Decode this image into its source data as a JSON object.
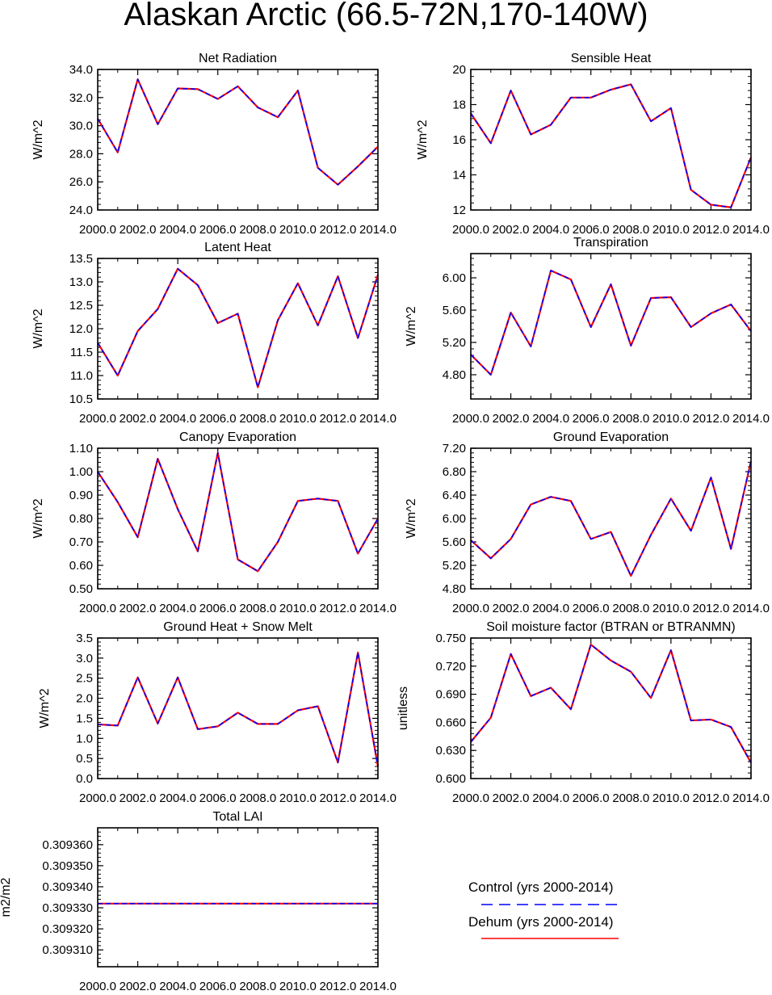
{
  "title": "Alaskan Arctic (66.5-72N,170-140W)",
  "colors": {
    "control": "#0000ff",
    "dehum": "#ff0000",
    "frame": "#000000"
  },
  "legend": {
    "items": [
      {
        "label": "Control (yrs 2000-2014)",
        "style": "dashed",
        "color": "#0000ff"
      },
      {
        "label": "Dehum (yrs 2000-2014)",
        "style": "solid",
        "color": "#ff0000"
      }
    ]
  },
  "chart_data": [
    {
      "type": "line",
      "title": "Net Radiation",
      "ylabel": "W/m^2",
      "x": [
        2000,
        2001,
        2002,
        2003,
        2004,
        2005,
        2006,
        2007,
        2008,
        2009,
        2010,
        2011,
        2012,
        2013,
        2014
      ],
      "xlim": [
        2000,
        2014
      ],
      "xticks": [
        "2000.0",
        "2002.0",
        "2004.0",
        "2006.0",
        "2008.0",
        "2010.0",
        "2012.0",
        "2014.0"
      ],
      "ylim": [
        24,
        34
      ],
      "yticks": [
        "24.0",
        "26.0",
        "28.0",
        "30.0",
        "32.0",
        "34.0"
      ],
      "series": [
        {
          "name": "Control (yrs 2000-2014)",
          "values": [
            30.5,
            28.1,
            33.3,
            30.1,
            32.65,
            32.6,
            31.9,
            32.8,
            31.3,
            30.6,
            32.5,
            27.0,
            25.8,
            27.1,
            28.5
          ]
        },
        {
          "name": "Dehum (yrs 2000-2014)",
          "values": [
            30.5,
            28.1,
            33.3,
            30.1,
            32.65,
            32.6,
            31.9,
            32.8,
            31.3,
            30.6,
            32.5,
            27.0,
            25.8,
            27.1,
            28.5
          ]
        }
      ]
    },
    {
      "type": "line",
      "title": "Sensible Heat",
      "ylabel": "W/m^2",
      "x": [
        2000,
        2001,
        2002,
        2003,
        2004,
        2005,
        2006,
        2007,
        2008,
        2009,
        2010,
        2011,
        2012,
        2013,
        2014
      ],
      "xlim": [
        2000,
        2014
      ],
      "xticks": [
        "2000.0",
        "2002.0",
        "2004.0",
        "2006.0",
        "2008.0",
        "2010.0",
        "2012.0",
        "2014.0"
      ],
      "ylim": [
        12,
        20
      ],
      "yticks": [
        "12",
        "14",
        "16",
        "18",
        "20"
      ],
      "series": [
        {
          "name": "Control (yrs 2000-2014)",
          "values": [
            17.5,
            15.8,
            18.8,
            16.3,
            16.85,
            18.4,
            18.4,
            18.85,
            19.15,
            17.05,
            17.8,
            13.15,
            12.3,
            12.15,
            15.0
          ]
        },
        {
          "name": "Dehum (yrs 2000-2014)",
          "values": [
            17.5,
            15.8,
            18.8,
            16.3,
            16.85,
            18.4,
            18.4,
            18.85,
            19.15,
            17.05,
            17.8,
            13.15,
            12.3,
            12.15,
            15.0
          ]
        }
      ]
    },
    {
      "type": "line",
      "title": "Latent Heat",
      "ylabel": "W/m^2",
      "x": [
        2000,
        2001,
        2002,
        2003,
        2004,
        2005,
        2006,
        2007,
        2008,
        2009,
        2010,
        2011,
        2012,
        2013,
        2014
      ],
      "xlim": [
        2000,
        2014
      ],
      "xticks": [
        "2000.0",
        "2002.0",
        "2004.0",
        "2006.0",
        "2008.0",
        "2010.0",
        "2012.0",
        "2014.0"
      ],
      "ylim": [
        10.5,
        13.5
      ],
      "yticks": [
        "10.5",
        "11.0",
        "11.5",
        "12.0",
        "12.5",
        "13.0",
        "13.5"
      ],
      "series": [
        {
          "name": "Control (yrs 2000-2014)",
          "values": [
            11.7,
            11.0,
            11.95,
            12.42,
            13.28,
            12.93,
            12.12,
            12.32,
            10.75,
            12.18,
            12.97,
            12.07,
            13.12,
            11.8,
            13.15
          ]
        },
        {
          "name": "Dehum (yrs 2000-2014)",
          "values": [
            11.7,
            11.0,
            11.95,
            12.42,
            13.28,
            12.93,
            12.12,
            12.32,
            10.75,
            12.18,
            12.97,
            12.07,
            13.12,
            11.8,
            13.15
          ]
        }
      ]
    },
    {
      "type": "line",
      "title": "Transpiration",
      "ylabel": "W/m^2",
      "x": [
        2000,
        2001,
        2002,
        2003,
        2004,
        2005,
        2006,
        2007,
        2008,
        2009,
        2010,
        2011,
        2012,
        2013,
        2014
      ],
      "xlim": [
        2000,
        2014
      ],
      "xticks": [
        "2000.0",
        "2002.0",
        "2004.0",
        "2006.0",
        "2008.0",
        "2010.0",
        "2012.0",
        "2014.0"
      ],
      "ylim": [
        4.5,
        6.3
      ],
      "yticks": [
        "4.80",
        "5.20",
        "5.60",
        "6.00"
      ],
      "series": [
        {
          "name": "Control (yrs 2000-2014)",
          "values": [
            5.05,
            4.8,
            5.57,
            5.15,
            6.09,
            5.98,
            5.39,
            5.92,
            5.16,
            5.75,
            5.76,
            5.39,
            5.56,
            5.67,
            5.34
          ]
        },
        {
          "name": "Dehum (yrs 2000-2014)",
          "values": [
            5.05,
            4.8,
            5.57,
            5.15,
            6.09,
            5.98,
            5.39,
            5.92,
            5.16,
            5.75,
            5.76,
            5.39,
            5.56,
            5.67,
            5.34
          ]
        }
      ]
    },
    {
      "type": "line",
      "title": "Canopy Evaporation",
      "ylabel": "W/m^2",
      "x": [
        2000,
        2001,
        2002,
        2003,
        2004,
        2005,
        2006,
        2007,
        2008,
        2009,
        2010,
        2011,
        2012,
        2013,
        2014
      ],
      "xlim": [
        2000,
        2014
      ],
      "xticks": [
        "2000.0",
        "2002.0",
        "2004.0",
        "2006.0",
        "2008.0",
        "2010.0",
        "2012.0",
        "2014.0"
      ],
      "ylim": [
        0.5,
        1.1
      ],
      "yticks": [
        "0.50",
        "0.60",
        "0.70",
        "0.80",
        "0.90",
        "1.00",
        "1.10"
      ],
      "series": [
        {
          "name": "Control (yrs 2000-2014)",
          "values": [
            1.0,
            0.87,
            0.72,
            1.055,
            0.84,
            0.66,
            1.08,
            0.625,
            0.575,
            0.7,
            0.875,
            0.885,
            0.875,
            0.65,
            0.8
          ]
        },
        {
          "name": "Dehum (yrs 2000-2014)",
          "values": [
            1.0,
            0.87,
            0.72,
            1.055,
            0.84,
            0.66,
            1.08,
            0.625,
            0.575,
            0.7,
            0.875,
            0.885,
            0.875,
            0.65,
            0.8
          ]
        }
      ]
    },
    {
      "type": "line",
      "title": "Ground Evaporation",
      "ylabel": "W/m^2",
      "x": [
        2000,
        2001,
        2002,
        2003,
        2004,
        2005,
        2006,
        2007,
        2008,
        2009,
        2010,
        2011,
        2012,
        2013,
        2014
      ],
      "xlim": [
        2000,
        2014
      ],
      "xticks": [
        "2000.0",
        "2002.0",
        "2004.0",
        "2006.0",
        "2008.0",
        "2010.0",
        "2012.0",
        "2014.0"
      ],
      "ylim": [
        4.8,
        7.2
      ],
      "yticks": [
        "4.80",
        "5.20",
        "5.60",
        "6.00",
        "6.40",
        "6.80",
        "7.20"
      ],
      "series": [
        {
          "name": "Control (yrs 2000-2014)",
          "values": [
            5.63,
            5.32,
            5.65,
            6.24,
            6.37,
            6.3,
            5.65,
            5.77,
            5.02,
            5.72,
            6.34,
            5.79,
            6.7,
            5.48,
            6.98
          ]
        },
        {
          "name": "Dehum (yrs 2000-2014)",
          "values": [
            5.63,
            5.32,
            5.65,
            6.24,
            6.37,
            6.3,
            5.65,
            5.77,
            5.02,
            5.72,
            6.34,
            5.79,
            6.7,
            5.48,
            6.98
          ]
        }
      ]
    },
    {
      "type": "line",
      "title": "Ground Heat + Snow Melt",
      "ylabel": "W/m^2",
      "x": [
        2000,
        2001,
        2002,
        2003,
        2004,
        2005,
        2006,
        2007,
        2008,
        2009,
        2010,
        2011,
        2012,
        2013,
        2014
      ],
      "xlim": [
        2000,
        2014
      ],
      "xticks": [
        "2000.0",
        "2002.0",
        "2004.0",
        "2006.0",
        "2008.0",
        "2010.0",
        "2012.0",
        "2014.0"
      ],
      "ylim": [
        0,
        3.5
      ],
      "yticks": [
        "0.0",
        "0.5",
        "1.0",
        "1.5",
        "2.0",
        "2.5",
        "3.0",
        "3.5"
      ],
      "series": [
        {
          "name": "Control (yrs 2000-2014)",
          "values": [
            1.35,
            1.32,
            2.52,
            1.37,
            2.52,
            1.23,
            1.3,
            1.64,
            1.36,
            1.36,
            1.7,
            1.8,
            0.4,
            3.14,
            0.3
          ]
        },
        {
          "name": "Dehum (yrs 2000-2014)",
          "values": [
            1.35,
            1.32,
            2.52,
            1.37,
            2.52,
            1.23,
            1.3,
            1.64,
            1.36,
            1.36,
            1.7,
            1.8,
            0.4,
            3.14,
            0.3
          ]
        }
      ]
    },
    {
      "type": "line",
      "title": "Soil moisture factor (BTRAN or BTRANMN)",
      "ylabel": "unitless",
      "x": [
        2000,
        2001,
        2002,
        2003,
        2004,
        2005,
        2006,
        2007,
        2008,
        2009,
        2010,
        2011,
        2012,
        2013,
        2014
      ],
      "xlim": [
        2000,
        2014
      ],
      "xticks": [
        "2000.0",
        "2002.0",
        "2004.0",
        "2006.0",
        "2008.0",
        "2010.0",
        "2012.0",
        "2014.0"
      ],
      "ylim": [
        0.6,
        0.75
      ],
      "yticks": [
        "0.600",
        "0.630",
        "0.660",
        "0.690",
        "0.720",
        "0.750"
      ],
      "series": [
        {
          "name": "Control (yrs 2000-2014)",
          "values": [
            0.639,
            0.665,
            0.733,
            0.688,
            0.697,
            0.674,
            0.743,
            0.726,
            0.714,
            0.686,
            0.737,
            0.662,
            0.663,
            0.655,
            0.617
          ]
        },
        {
          "name": "Dehum (yrs 2000-2014)",
          "values": [
            0.639,
            0.665,
            0.733,
            0.688,
            0.697,
            0.674,
            0.743,
            0.726,
            0.714,
            0.686,
            0.737,
            0.662,
            0.663,
            0.655,
            0.617
          ]
        }
      ]
    },
    {
      "type": "line",
      "title": "Total LAI",
      "ylabel": "m2/m2",
      "x": [
        2000,
        2001,
        2002,
        2003,
        2004,
        2005,
        2006,
        2007,
        2008,
        2009,
        2010,
        2011,
        2012,
        2013,
        2014
      ],
      "xlim": [
        2000,
        2014
      ],
      "xticks": [
        "2000.0",
        "2002.0",
        "2004.0",
        "2006.0",
        "2008.0",
        "2010.0",
        "2012.0",
        "2014.0"
      ],
      "ylim": [
        0.309302,
        0.309368
      ],
      "yticks": [
        "0.309310",
        "0.309320",
        "0.309330",
        "0.309340",
        "0.309350",
        "0.309360"
      ],
      "series": [
        {
          "name": "Control (yrs 2000-2014)",
          "values": [
            0.309332,
            0.309332,
            0.309332,
            0.309332,
            0.309332,
            0.309332,
            0.309332,
            0.309332,
            0.309332,
            0.309332,
            0.309332,
            0.309332,
            0.309332,
            0.309332,
            0.309332
          ]
        },
        {
          "name": "Dehum (yrs 2000-2014)",
          "values": [
            0.309332,
            0.309332,
            0.309332,
            0.309332,
            0.309332,
            0.309332,
            0.309332,
            0.309332,
            0.309332,
            0.309332,
            0.309332,
            0.309332,
            0.309332,
            0.309332,
            0.309332
          ]
        }
      ]
    }
  ]
}
